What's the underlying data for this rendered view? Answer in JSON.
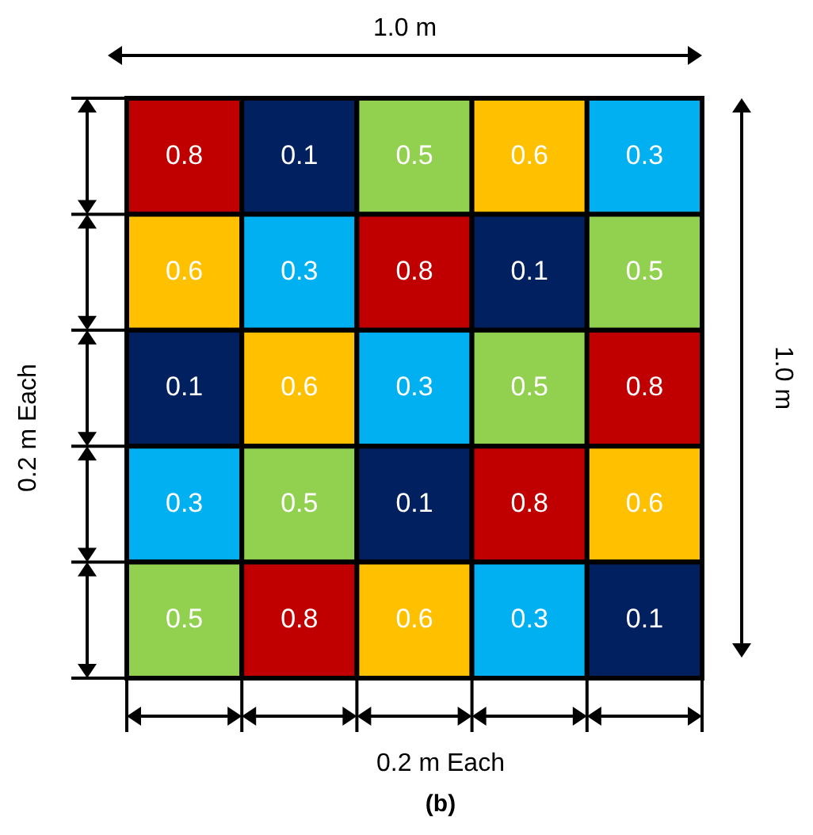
{
  "chart_data": {
    "type": "heatmap",
    "categories": [
      null,
      null,
      null,
      null,
      null
    ],
    "y_categories": [
      null,
      null,
      null,
      null,
      null
    ],
    "cells": [
      [
        0.8,
        0.1,
        0.5,
        0.6,
        0.3
      ],
      [
        0.6,
        0.3,
        0.8,
        0.1,
        0.5
      ],
      [
        0.1,
        0.6,
        0.3,
        0.5,
        0.8
      ],
      [
        0.3,
        0.5,
        0.1,
        0.8,
        0.6
      ],
      [
        0.5,
        0.8,
        0.6,
        0.3,
        0.1
      ]
    ],
    "colors": [
      "#c00000",
      "#002060",
      "#92d050",
      "#ffc000",
      "#00b0f0",
      "#ffc000",
      "#00b0f0",
      "#c00000",
      "#002060",
      "#92d050",
      "#002060",
      "#ffc000",
      "#00b0f0",
      "#92d050",
      "#c00000",
      "#00b0f0",
      "#92d050",
      "#002060",
      "#c00000",
      "#ffc000",
      "#92d050",
      "#c00000",
      "#ffc000",
      "#00b0f0",
      "#002060"
    ],
    "data_labels": true,
    "annotations": [
      "1.0 m",
      "1.0 m",
      "0.2 m Each",
      "0.2 m Each",
      "(b)"
    ]
  }
}
